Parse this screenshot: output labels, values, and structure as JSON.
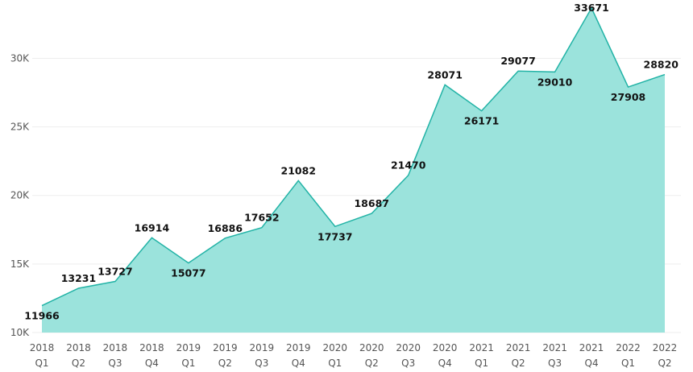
{
  "chart_data": {
    "type": "area",
    "title": "",
    "xlabel": "",
    "ylabel": "",
    "categories": [
      [
        "2018",
        "Q1"
      ],
      [
        "2018",
        "Q2"
      ],
      [
        "2018",
        "Q3"
      ],
      [
        "2018",
        "Q4"
      ],
      [
        "2019",
        "Q1"
      ],
      [
        "2019",
        "Q2"
      ],
      [
        "2019",
        "Q3"
      ],
      [
        "2019",
        "Q4"
      ],
      [
        "2020",
        "Q1"
      ],
      [
        "2020",
        "Q2"
      ],
      [
        "2020",
        "Q3"
      ],
      [
        "2020",
        "Q4"
      ],
      [
        "2021",
        "Q1"
      ],
      [
        "2021",
        "Q2"
      ],
      [
        "2021",
        "Q3"
      ],
      [
        "2021",
        "Q4"
      ],
      [
        "2022",
        "Q1"
      ],
      [
        "2022",
        "Q2"
      ]
    ],
    "values": [
      11966,
      13231,
      13727,
      16914,
      15077,
      16886,
      17652,
      21082,
      17737,
      18687,
      21470,
      28071,
      26171,
      29077,
      29010,
      33671,
      27908,
      28820
    ],
    "data_labels": [
      "11966",
      "13231",
      "13727",
      "16914",
      "15077",
      "16886",
      "17652",
      "21082",
      "17737",
      "18687",
      "21470",
      "28071",
      "26171",
      "29077",
      "29010",
      "33671",
      "27908",
      "28820"
    ],
    "ylim": [
      10000,
      33671
    ],
    "yticks": [
      10000,
      15000,
      20000,
      25000,
      30000
    ],
    "ytick_labels": [
      "10K",
      "15K",
      "20K",
      "25K",
      "30K"
    ],
    "grid": true,
    "legend": "none",
    "colors": {
      "fill": "#9be3dc",
      "line": "#22b3a6"
    }
  }
}
